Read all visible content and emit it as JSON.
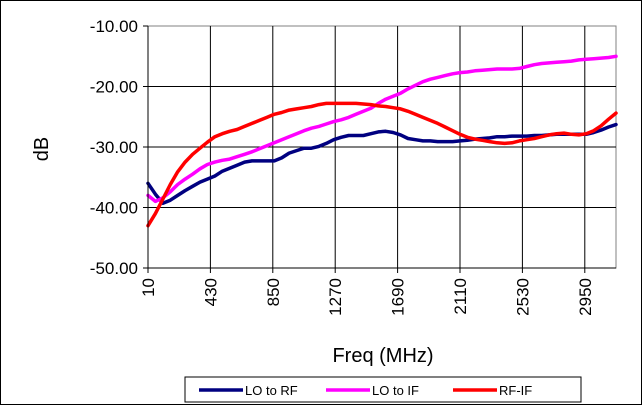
{
  "chart_data": {
    "type": "line",
    "xlabel": "Freq (MHz)",
    "ylabel": "dB",
    "x_tick_labels": [
      "10",
      "430",
      "850",
      "1270",
      "1690",
      "2110",
      "2530",
      "2950"
    ],
    "y_tick_labels": [
      "-10.00",
      "-20.00",
      "-30.00",
      "-40.00",
      "-50.00"
    ],
    "xlim": [
      10,
      3160
    ],
    "ylim": [
      -50,
      -10
    ],
    "grid": true,
    "legend_position": "bottom",
    "series": [
      {
        "name": "LO to RF",
        "color": "#000080",
        "x": [
          10,
          60,
          110,
          160,
          210,
          260,
          310,
          360,
          410,
          460,
          510,
          560,
          610,
          660,
          710,
          760,
          810,
          860,
          910,
          960,
          1010,
          1060,
          1110,
          1160,
          1210,
          1260,
          1310,
          1360,
          1410,
          1460,
          1510,
          1560,
          1610,
          1660,
          1710,
          1760,
          1810,
          1860,
          1910,
          1960,
          2010,
          2060,
          2110,
          2160,
          2210,
          2260,
          2310,
          2360,
          2410,
          2460,
          2510,
          2560,
          2610,
          2660,
          2710,
          2760,
          2810,
          2860,
          2910,
          2960,
          3010,
          3060,
          3110,
          3160
        ],
        "values": [
          -36,
          -37.8,
          -39.3,
          -38.8,
          -38.0,
          -37.2,
          -36.5,
          -35.8,
          -35.3,
          -34.8,
          -34.0,
          -33.5,
          -33.0,
          -32.5,
          -32.3,
          -32.3,
          -32.3,
          -32.3,
          -31.8,
          -31.0,
          -30.6,
          -30.2,
          -30.2,
          -29.9,
          -29.4,
          -28.8,
          -28.4,
          -28.1,
          -28.1,
          -28.1,
          -27.8,
          -27.5,
          -27.4,
          -27.6,
          -28.0,
          -28.6,
          -28.8,
          -29.0,
          -29.0,
          -29.1,
          -29.1,
          -29.1,
          -29.0,
          -28.9,
          -28.7,
          -28.6,
          -28.5,
          -28.3,
          -28.3,
          -28.2,
          -28.2,
          -28.2,
          -28.1,
          -28.1,
          -28.0,
          -27.9,
          -27.9,
          -27.9,
          -27.9,
          -27.9,
          -27.6,
          -27.2,
          -26.7,
          -26.3
        ]
      },
      {
        "name": "LO to IF",
        "color": "#FF00FF",
        "x": [
          10,
          60,
          110,
          160,
          210,
          260,
          310,
          360,
          410,
          460,
          510,
          560,
          610,
          660,
          710,
          760,
          810,
          860,
          910,
          960,
          1010,
          1060,
          1110,
          1160,
          1210,
          1260,
          1310,
          1360,
          1410,
          1460,
          1510,
          1560,
          1610,
          1660,
          1710,
          1760,
          1810,
          1860,
          1910,
          1960,
          2010,
          2060,
          2110,
          2160,
          2210,
          2260,
          2310,
          2360,
          2410,
          2460,
          2510,
          2560,
          2610,
          2660,
          2710,
          2760,
          2810,
          2860,
          2910,
          2960,
          3010,
          3060,
          3110,
          3160
        ],
        "values": [
          -38,
          -39,
          -38.4,
          -37.4,
          -36.2,
          -35.3,
          -34.5,
          -33.6,
          -32.9,
          -32.5,
          -32.2,
          -32.0,
          -31.6,
          -31.2,
          -30.8,
          -30.3,
          -29.8,
          -29.3,
          -28.8,
          -28.3,
          -27.8,
          -27.3,
          -26.9,
          -26.6,
          -26.2,
          -25.8,
          -25.5,
          -25.1,
          -24.6,
          -24.1,
          -23.6,
          -22.8,
          -22.1,
          -21.6,
          -21.1,
          -20.4,
          -19.8,
          -19.2,
          -18.8,
          -18.5,
          -18.2,
          -17.9,
          -17.7,
          -17.6,
          -17.4,
          -17.3,
          -17.2,
          -17.1,
          -17.1,
          -17.1,
          -17.0,
          -16.7,
          -16.4,
          -16.2,
          -16.1,
          -16.0,
          -15.9,
          -15.8,
          -15.6,
          -15.5,
          -15.4,
          -15.3,
          -15.2,
          -15.0
        ]
      },
      {
        "name": "RF-IF",
        "color": "#FF0000",
        "x": [
          10,
          60,
          110,
          160,
          210,
          260,
          310,
          360,
          410,
          460,
          510,
          560,
          610,
          660,
          710,
          760,
          810,
          860,
          910,
          960,
          1010,
          1060,
          1110,
          1160,
          1210,
          1260,
          1310,
          1360,
          1410,
          1460,
          1510,
          1560,
          1610,
          1660,
          1710,
          1760,
          1810,
          1860,
          1910,
          1960,
          2010,
          2060,
          2110,
          2160,
          2210,
          2260,
          2310,
          2360,
          2410,
          2460,
          2510,
          2560,
          2610,
          2660,
          2710,
          2760,
          2810,
          2860,
          2910,
          2960,
          3010,
          3060,
          3110,
          3160
        ],
        "values": [
          -43,
          -41.0,
          -38.6,
          -36.2,
          -34.1,
          -32.5,
          -31.2,
          -30.2,
          -29.2,
          -28.3,
          -27.8,
          -27.4,
          -27.1,
          -26.6,
          -26.1,
          -25.6,
          -25.1,
          -24.6,
          -24.3,
          -23.9,
          -23.7,
          -23.5,
          -23.3,
          -23.0,
          -22.8,
          -22.8,
          -22.8,
          -22.8,
          -22.8,
          -22.9,
          -23.0,
          -23.2,
          -23.3,
          -23.5,
          -23.7,
          -24.1,
          -24.6,
          -25.1,
          -25.6,
          -26.1,
          -26.7,
          -27.3,
          -27.9,
          -28.4,
          -28.7,
          -28.9,
          -29.1,
          -29.3,
          -29.4,
          -29.3,
          -29.0,
          -28.8,
          -28.6,
          -28.3,
          -28.0,
          -27.8,
          -27.7,
          -27.9,
          -28.0,
          -27.8,
          -27.3,
          -26.5,
          -25.4,
          -24.4
        ]
      }
    ]
  }
}
